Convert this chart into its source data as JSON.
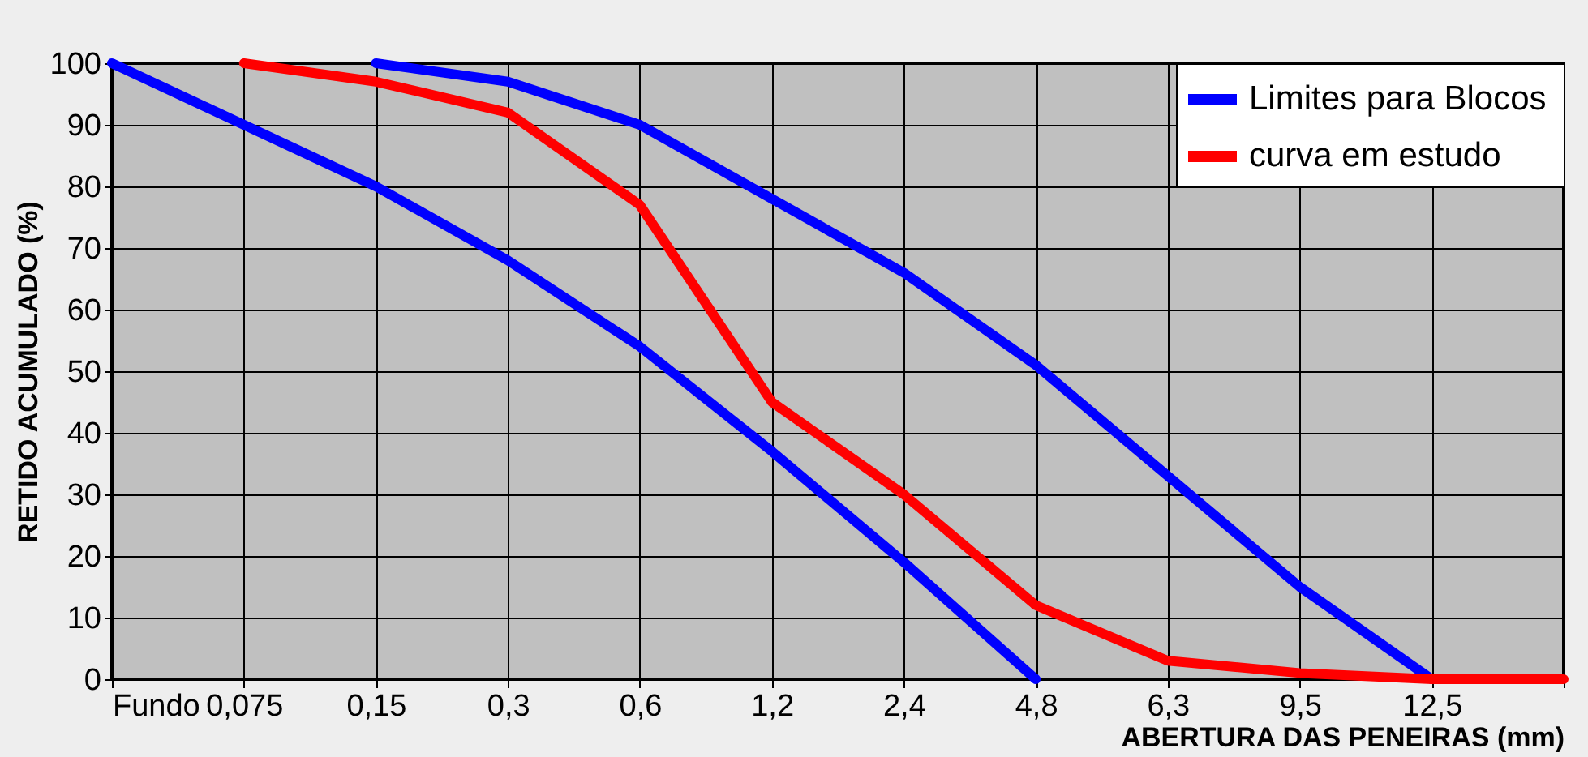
{
  "chart_data": {
    "type": "line",
    "xlabel": "ABERTURA DAS PENEIRAS (mm)",
    "ylabel": "RETIDO ACUMULADO (%)",
    "categories": [
      "Fundo",
      "0,075",
      "0,15",
      "0,3",
      "0,6",
      "1,2",
      "2,4",
      "4,8",
      "6,3",
      "9,5",
      "12,5",
      null
    ],
    "series": [
      {
        "name": "Limites  para Blocos",
        "color": "#0000ff",
        "values": [
          100,
          90,
          80,
          68,
          54,
          37,
          19,
          0,
          null,
          null,
          null,
          null
        ]
      },
      {
        "color": "#0000ff",
        "values": [
          null,
          null,
          100,
          97,
          90,
          78,
          66,
          51,
          33,
          15,
          0,
          null
        ]
      },
      {
        "name": "curva em estudo",
        "color": "#ff0000",
        "values": [
          null,
          100,
          97,
          92,
          77,
          45,
          30,
          12,
          3,
          1,
          0,
          0
        ]
      }
    ],
    "ylim": [
      0,
      100
    ],
    "yticks": [
      0,
      10,
      20,
      30,
      40,
      50,
      60,
      70,
      80,
      90,
      100
    ],
    "grid": true,
    "legend": "top right",
    "marker": "none",
    "line_style": "solid"
  }
}
